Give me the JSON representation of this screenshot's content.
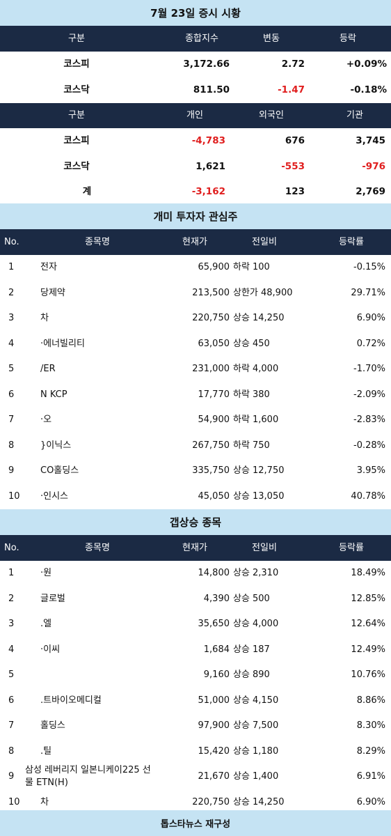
{
  "title1": "7월 23일 증시 시황",
  "index_table": {
    "headers": [
      "구분",
      "종합지수",
      "변동",
      "등락"
    ],
    "rows": [
      {
        "name": "코스피",
        "index": "3,172.66",
        "change": "2.72",
        "rate": "+0.09%"
      },
      {
        "name": "코스닥",
        "index": "811.50",
        "change": "-1.47",
        "rate": "-0.18%"
      }
    ]
  },
  "investor_table": {
    "headers": [
      "구분",
      "개인",
      "외국인",
      "기관"
    ],
    "rows": [
      {
        "name": "코스피",
        "individual": "-4,783",
        "foreign": "676",
        "institution": "3,745"
      },
      {
        "name": "코스닥",
        "individual": "1,621",
        "foreign": "-553",
        "institution": "-976"
      },
      {
        "name": "계",
        "individual": "-3,162",
        "foreign": "123",
        "institution": "2,769"
      }
    ]
  },
  "title2": "개미 투자자 관심주",
  "list_headers": [
    "No.",
    "종목명",
    "현재가",
    "전일비",
    "등락률"
  ],
  "interest_rows": [
    {
      "no": "1",
      "name": "전자",
      "price": "65,900",
      "dir": "하락",
      "diff": "100",
      "rate": "-0.15%"
    },
    {
      "no": "2",
      "name": "당제약",
      "price": "213,500",
      "dir": "상한가",
      "diff": "48,900",
      "rate": "29.71%"
    },
    {
      "no": "3",
      "name": "차",
      "price": "220,750",
      "dir": "상승",
      "diff": "14,250",
      "rate": "6.90%"
    },
    {
      "no": "4",
      "name": "·에너빌리티",
      "price": "63,050",
      "dir": "상승",
      "diff": "450",
      "rate": "0.72%"
    },
    {
      "no": "5",
      "name": "/ER",
      "price": "231,000",
      "dir": "하락",
      "diff": "4,000",
      "rate": "-1.70%"
    },
    {
      "no": "6",
      "name": "N KCP",
      "price": "17,770",
      "dir": "하락",
      "diff": "380",
      "rate": "-2.09%"
    },
    {
      "no": "7",
      "name": "·오",
      "price": "54,900",
      "dir": "하락",
      "diff": "1,600",
      "rate": "-2.83%"
    },
    {
      "no": "8",
      "name": "}이닉스",
      "price": "267,750",
      "dir": "하락",
      "diff": "750",
      "rate": "-0.28%"
    },
    {
      "no": "9",
      "name": "CO홀딩스",
      "price": "335,750",
      "dir": "상승",
      "diff": "12,750",
      "rate": "3.95%"
    },
    {
      "no": "10",
      "name": "·인시스",
      "price": "45,050",
      "dir": "상승",
      "diff": "13,050",
      "rate": "40.78%"
    }
  ],
  "title3": "갭상승 종목",
  "gap_rows": [
    {
      "no": "1",
      "name": "·원",
      "price": "14,800",
      "dir": "상승",
      "diff": "2,310",
      "rate": "18.49%"
    },
    {
      "no": "2",
      "name": "글로벌",
      "price": "4,390",
      "dir": "상승",
      "diff": "500",
      "rate": "12.85%"
    },
    {
      "no": "3",
      "name": ".엘",
      "price": "35,650",
      "dir": "상승",
      "diff": "4,000",
      "rate": "12.64%"
    },
    {
      "no": "4",
      "name": "·이씨",
      "price": "1,684",
      "dir": "상승",
      "diff": "187",
      "rate": "12.49%"
    },
    {
      "no": "5",
      "name": "",
      "price": "9,160",
      "dir": "상승",
      "diff": "890",
      "rate": "10.76%"
    },
    {
      "no": "6",
      "name": ".트바이오메디컬",
      "price": "51,000",
      "dir": "상승",
      "diff": "4,150",
      "rate": "8.86%"
    },
    {
      "no": "7",
      "name": "홀딩스",
      "price": "97,900",
      "dir": "상승",
      "diff": "7,500",
      "rate": "8.30%"
    },
    {
      "no": "8",
      "name": ".틸",
      "price": "15,420",
      "dir": "상승",
      "diff": "1,180",
      "rate": "8.29%"
    },
    {
      "no": "9",
      "name": "삼성 레버리지 일본니케이225 선물 ETN(H)",
      "price": "21,670",
      "dir": "상승",
      "diff": "1,400",
      "rate": "6.91%"
    },
    {
      "no": "10",
      "name": "차",
      "price": "220,750",
      "dir": "상승",
      "diff": "14,250",
      "rate": "6.90%"
    }
  ],
  "footer": "톱스타뉴스 재구성",
  "colors": {
    "band": "#c5e3f3",
    "header": "#1b2a44",
    "negative": "#e01e1e"
  }
}
